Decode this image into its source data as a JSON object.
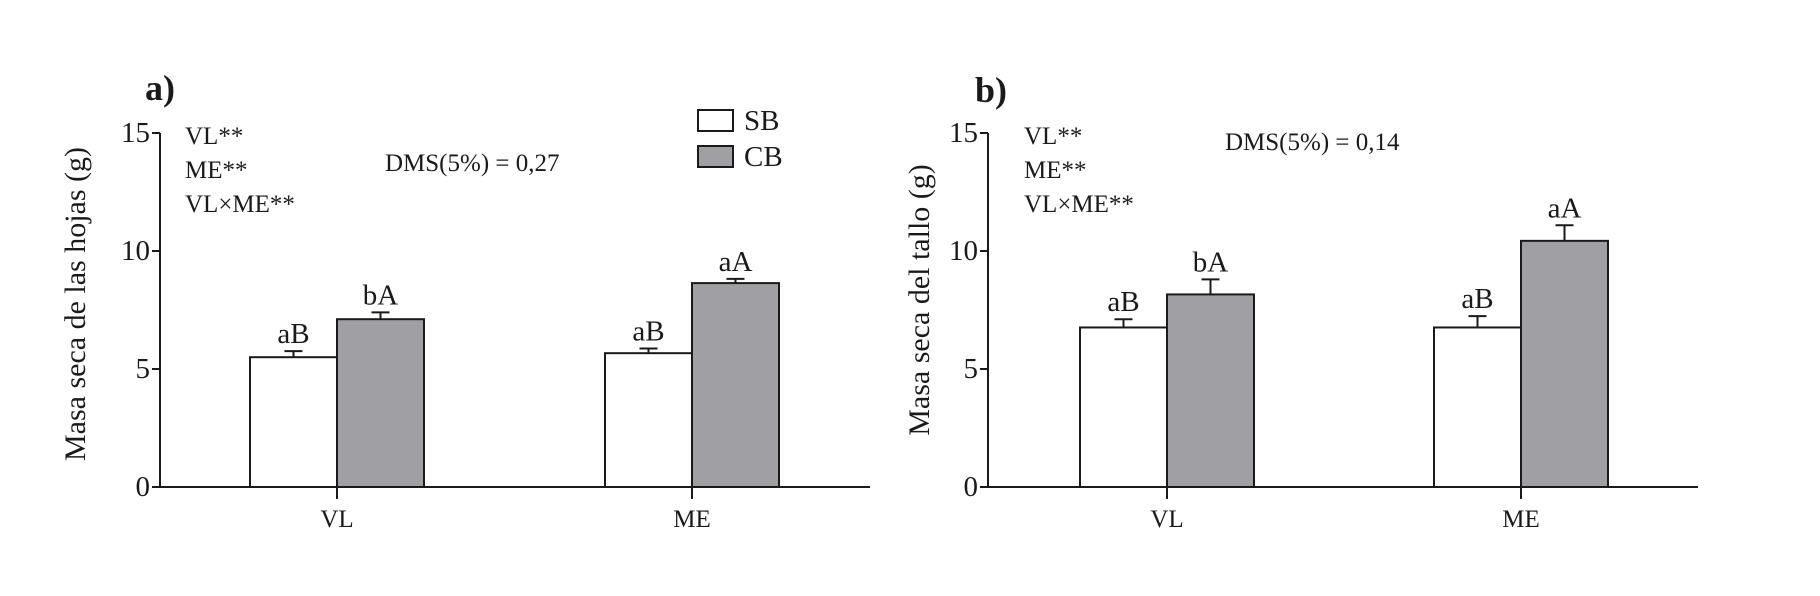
{
  "colors": {
    "SB": "#ffffff",
    "CB": "#a0a0a4",
    "stroke": "#1a1a1a"
  },
  "legend": {
    "items": [
      {
        "label": "SB",
        "color": "#ffffff"
      },
      {
        "label": "CB",
        "color": "#a0a0a4"
      }
    ]
  },
  "chart_data": [
    {
      "type": "bar",
      "panel_label": "a)",
      "ylabel": "Masa seca de las hojas (g)",
      "xlabel": "",
      "ylim": [
        0,
        15
      ],
      "yticks": [
        "0",
        "5",
        "10",
        "15"
      ],
      "categories": [
        "VL",
        "ME"
      ],
      "annotations": [
        "VL**",
        "ME**",
        "VL×ME**"
      ],
      "dms": "DMS(5%) = 0,27",
      "legend_position": "top-right",
      "series": [
        {
          "name": "SB",
          "values": [
            5.5,
            5.67
          ],
          "errors": [
            0.26,
            0.2
          ],
          "letters": [
            "aB",
            "aB"
          ]
        },
        {
          "name": "CB",
          "values": [
            7.11,
            8.64
          ],
          "errors": [
            0.29,
            0.18
          ],
          "letters": [
            "bA",
            "aA"
          ]
        }
      ]
    },
    {
      "type": "bar",
      "panel_label": "b)",
      "ylabel": "Masa seca del tallo (g)",
      "xlabel": "",
      "ylim": [
        0,
        15
      ],
      "yticks": [
        "0",
        "5",
        "10",
        "15"
      ],
      "categories": [
        "VL",
        "ME"
      ],
      "annotations": [
        "VL**",
        "ME**",
        "VL×ME**"
      ],
      "dms": "DMS(5%) = 0,14",
      "series": [
        {
          "name": "SB",
          "values": [
            6.76,
            6.76
          ],
          "errors": [
            0.35,
            0.48
          ],
          "letters": [
            "aB",
            "aB"
          ]
        },
        {
          "name": "CB",
          "values": [
            8.16,
            10.43
          ],
          "errors": [
            0.64,
            0.66
          ],
          "letters": [
            "bA",
            "aA"
          ]
        }
      ]
    }
  ]
}
